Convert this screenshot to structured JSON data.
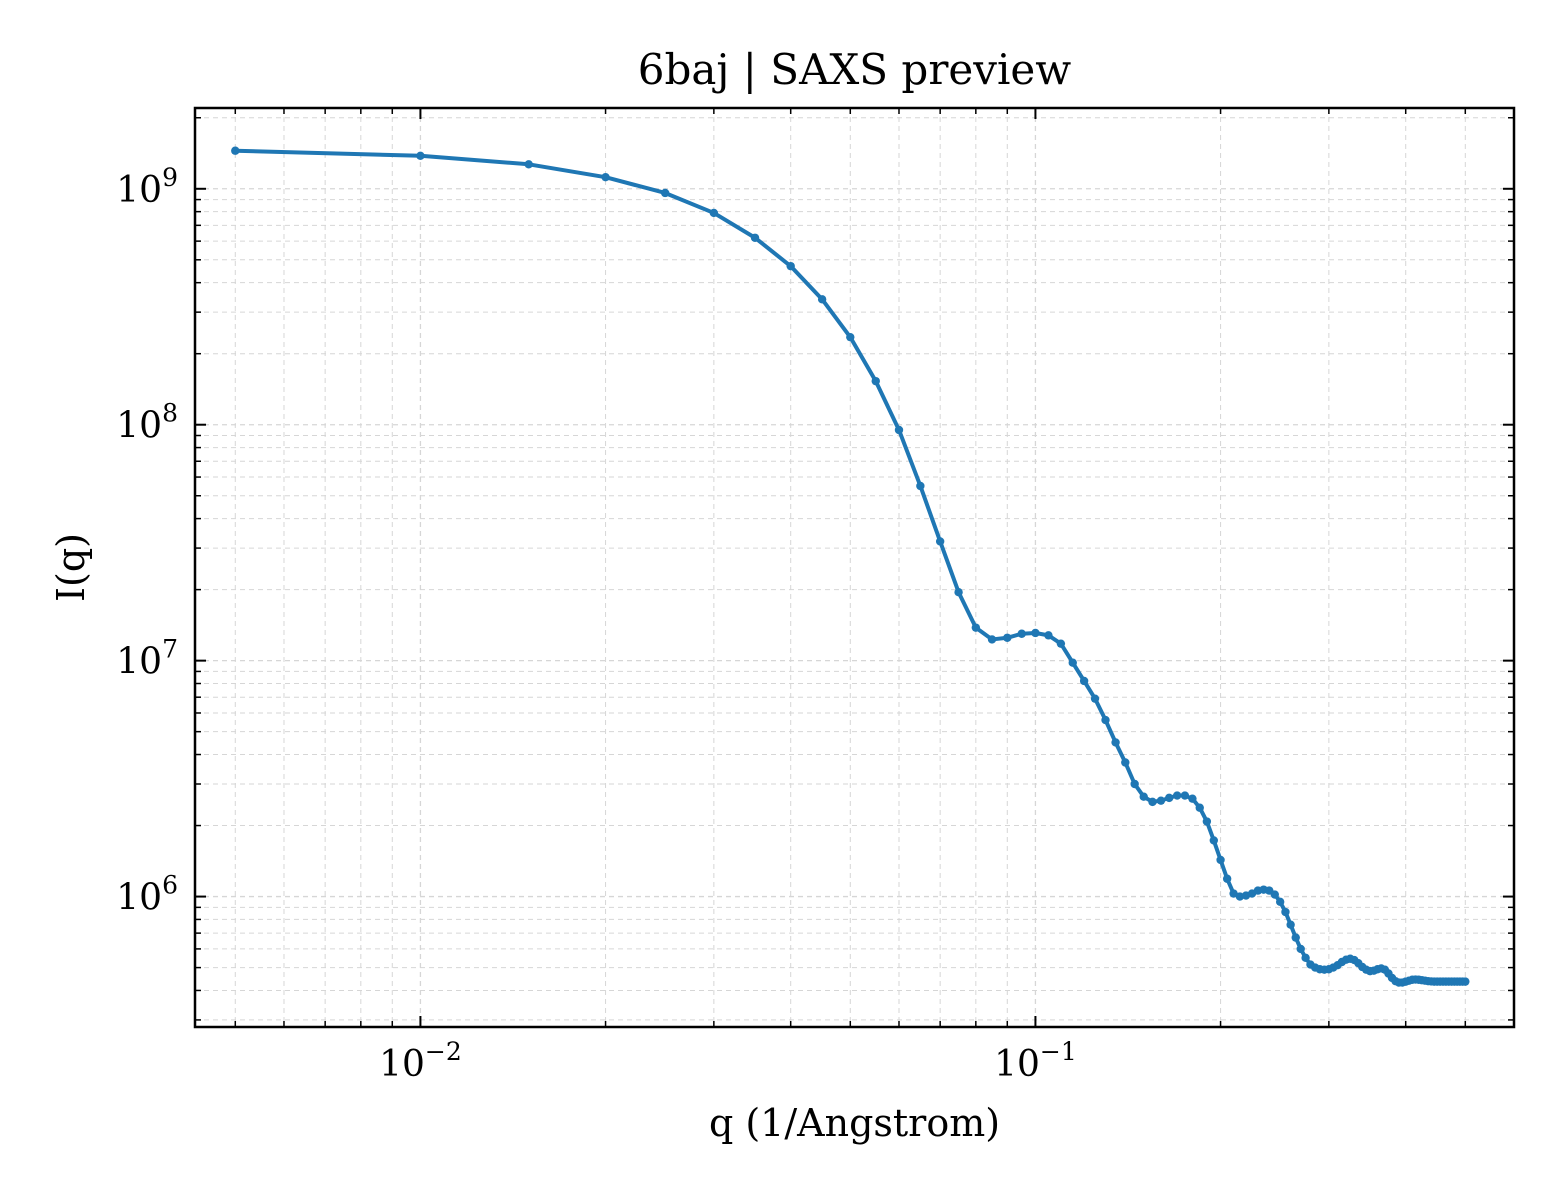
{
  "chart_data": {
    "type": "line",
    "title": "6baj | SAXS preview",
    "xlabel": "q (1/Angstrom)",
    "ylabel": "I(q)",
    "x_scale": "log",
    "y_scale": "log",
    "xlim": [
      0.0043,
      0.6
    ],
    "ylim": [
      280000,
      2200000000
    ],
    "x_ticks": [
      {
        "value": 0.01,
        "base": "10",
        "exp": "−2"
      },
      {
        "value": 0.1,
        "base": "10",
        "exp": "−1"
      }
    ],
    "y_ticks": [
      {
        "value": 1000000,
        "base": "10",
        "exp": "6"
      },
      {
        "value": 10000000,
        "base": "10",
        "exp": "7"
      },
      {
        "value": 100000000,
        "base": "10",
        "exp": "8"
      },
      {
        "value": 1000000000,
        "base": "10",
        "exp": "9"
      }
    ],
    "grid": true,
    "legend": "none",
    "line_color": "#1f77b4",
    "series": [
      {
        "x": [
          0.005,
          0.01,
          0.015,
          0.02,
          0.025,
          0.03,
          0.035,
          0.04,
          0.045,
          0.05,
          0.055,
          0.06,
          0.065,
          0.07,
          0.075,
          0.08,
          0.085,
          0.09,
          0.095,
          0.1,
          0.105,
          0.11,
          0.115,
          0.12,
          0.125,
          0.13,
          0.135,
          0.14,
          0.145,
          0.15,
          0.155,
          0.16,
          0.165,
          0.17,
          0.175,
          0.18,
          0.185,
          0.19,
          0.195,
          0.2,
          0.205,
          0.21,
          0.215,
          0.22,
          0.225,
          0.23,
          0.235,
          0.24,
          0.245,
          0.25,
          0.255,
          0.26,
          0.265,
          0.27,
          0.275,
          0.28,
          0.285,
          0.29,
          0.295,
          0.3,
          0.305,
          0.31,
          0.315,
          0.32,
          0.325,
          0.33,
          0.335,
          0.34,
          0.345,
          0.35,
          0.355,
          0.36,
          0.365,
          0.37,
          0.375,
          0.38,
          0.385,
          0.39,
          0.395,
          0.4,
          0.405,
          0.41,
          0.415,
          0.42,
          0.425,
          0.43,
          0.435,
          0.44,
          0.445,
          0.45,
          0.455,
          0.46,
          0.465,
          0.47,
          0.475,
          0.48,
          0.485,
          0.49,
          0.495,
          0.5
        ],
        "y": [
          1450000000,
          1380000000,
          1270000000,
          1120000000,
          960000000,
          790000000,
          620000000,
          470000000,
          340000000,
          235000000,
          153000000,
          95000000,
          55000000,
          32000000,
          19500000,
          13800000,
          12300000,
          12500000,
          13000000,
          13100000,
          12800000,
          11800000,
          9800000,
          8200000,
          6900000,
          5600000,
          4500000,
          3700000,
          3000000,
          2650000,
          2520000,
          2550000,
          2620000,
          2680000,
          2680000,
          2600000,
          2380000,
          2080000,
          1730000,
          1430000,
          1190000,
          1030000,
          1000000,
          1010000,
          1030000,
          1060000,
          1070000,
          1060000,
          1020000,
          950000,
          860000,
          760000,
          670000,
          600000,
          550000,
          515000,
          500000,
          492000,
          490000,
          492000,
          500000,
          512000,
          528000,
          540000,
          545000,
          538000,
          522000,
          503000,
          490000,
          483000,
          485000,
          492000,
          496000,
          490000,
          472000,
          452000,
          438000,
          432000,
          432000,
          436000,
          440000,
          444000,
          445000,
          444000,
          442000,
          440000,
          438000,
          437000,
          436000,
          436000,
          436000,
          436000,
          436000,
          436000,
          436000,
          436000,
          436000,
          436000,
          436000,
          436000
        ]
      }
    ]
  }
}
